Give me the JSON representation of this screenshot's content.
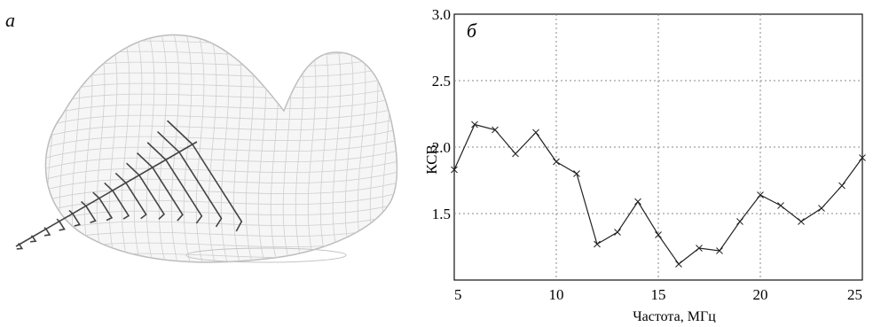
{
  "panel_a": {
    "label": "а"
  },
  "panel_b": {
    "label": "б"
  },
  "chart_data": {
    "type": "line",
    "title": "",
    "xlabel": "Частота, МГц",
    "ylabel": "КСВ",
    "xlim": [
      5,
      25
    ],
    "ylim": [
      1.0,
      3.0
    ],
    "xticks": [
      "5",
      "10",
      "15",
      "20",
      "25"
    ],
    "yticks": [
      "1.5",
      "2.0",
      "2.5",
      "3.0"
    ],
    "grid": true,
    "x": [
      5,
      6,
      7,
      8,
      9,
      10,
      11,
      12,
      13,
      14,
      15,
      16,
      17,
      18,
      19,
      20,
      21,
      22,
      23,
      24,
      25
    ],
    "series": [
      {
        "values": [
          1.83,
          2.17,
          2.13,
          1.95,
          2.11,
          1.89,
          1.8,
          1.27,
          1.36,
          1.59,
          1.34,
          1.12,
          1.24,
          1.22,
          1.44,
          1.64,
          1.56,
          1.44,
          1.54,
          1.71,
          1.92
        ]
      }
    ],
    "colors": {
      "line": "#222222",
      "grid": "#888888",
      "axes": "#111111"
    }
  }
}
